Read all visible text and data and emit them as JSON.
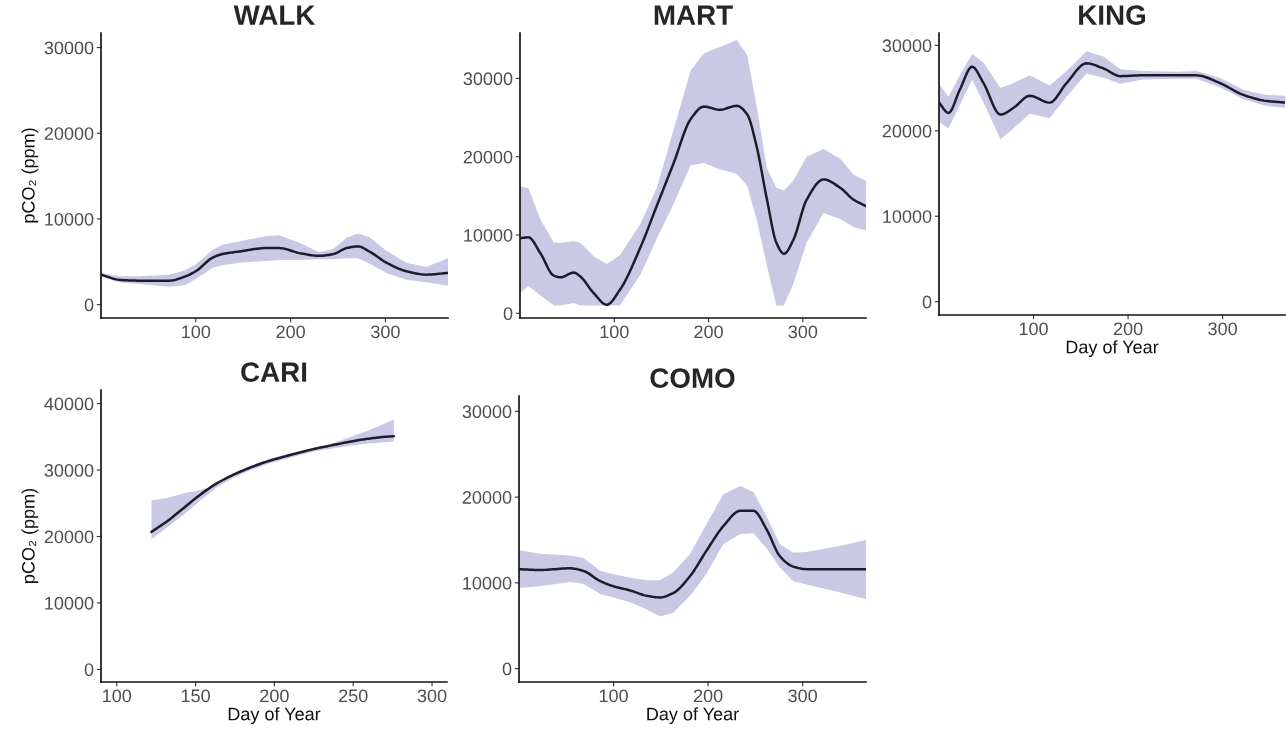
{
  "chart_data": [
    {
      "type": "line",
      "title": "WALK",
      "ylabel": "pCO₂ (ppm)",
      "xlim": [
        0,
        366
      ],
      "ylim": [
        -1560,
        31700
      ],
      "xticks": [
        100,
        200,
        300
      ],
      "yticks": [
        0,
        10000,
        20000,
        30000
      ],
      "series": [
        {
          "color": "#1c1c2c",
          "x": [
            0,
            19,
            40,
            72,
            89,
            100,
            118,
            128,
            146,
            174,
            188,
            210,
            230,
            245,
            259,
            271,
            283,
            301,
            322,
            343,
            366
          ],
          "values": [
            3500,
            2900,
            2800,
            2800,
            3300,
            3900,
            5500,
            5900,
            6200,
            6600,
            6600,
            6000,
            5700,
            5900,
            6600,
            6800,
            6200,
            4900,
            3900,
            3500,
            3700
          ],
          "upper": [
            3700,
            3300,
            3300,
            3500,
            4000,
            4700,
            6400,
            7000,
            7400,
            8000,
            8100,
            7200,
            6100,
            6500,
            7800,
            8300,
            7900,
            6300,
            4900,
            4400,
            5400
          ],
          "lower": [
            3300,
            2600,
            2400,
            2100,
            2300,
            3000,
            4300,
            4600,
            4900,
            5100,
            5200,
            5200,
            5300,
            5300,
            5400,
            5400,
            4800,
            3700,
            2900,
            2600,
            2200
          ]
        }
      ]
    },
    {
      "type": "line",
      "title": "MART",
      "xlim": [
        0,
        367
      ],
      "ylim": [
        -600,
        35800
      ],
      "xticks": [
        100,
        200,
        300
      ],
      "yticks": [
        0,
        10000,
        20000,
        30000
      ],
      "series": [
        {
          "color": "#1c1c2c",
          "x": [
            0,
            9,
            21.5,
            36,
            43,
            57,
            64,
            78,
            92,
            106,
            128,
            145,
            163,
            181,
            195,
            212,
            230,
            241,
            251,
            262,
            272,
            280,
            290,
            304,
            322,
            340,
            354,
            367
          ],
          "values": [
            9600,
            9700,
            7700,
            4800,
            4600,
            5200,
            4700,
            2600,
            1100,
            3000,
            8500,
            13700,
            19200,
            24800,
            26400,
            26000,
            26500,
            25400,
            21300,
            14500,
            9000,
            7600,
            9400,
            14500,
            17100,
            16000,
            14500,
            13700
          ],
          "upper": [
            16200,
            16000,
            12000,
            9000,
            9000,
            9200,
            9000,
            7300,
            6300,
            7400,
            11500,
            16000,
            23500,
            31000,
            33200,
            34000,
            34900,
            33000,
            26500,
            18500,
            16000,
            15700,
            17000,
            20000,
            21000,
            19700,
            17700,
            16900
          ],
          "lower": [
            2600,
            3500,
            2300,
            1000,
            1000,
            1300,
            1000,
            1000,
            1000,
            1000,
            5000,
            9500,
            14000,
            18900,
            19200,
            18400,
            17800,
            16300,
            12000,
            6000,
            1000,
            1000,
            3800,
            9000,
            12800,
            12000,
            11000,
            10600
          ]
        }
      ]
    },
    {
      "type": "line",
      "title": "KING",
      "xlabel": "Day of Year",
      "xlim": [
        0,
        366
      ],
      "ylim": [
        -1560,
        31450
      ],
      "xticks": [
        100,
        200,
        300
      ],
      "yticks": [
        0,
        10000,
        20000,
        30000
      ],
      "series": [
        {
          "color": "#1c1c2c",
          "x": [
            0,
            10,
            22,
            35,
            47,
            65,
            79,
            96,
            117,
            135,
            156,
            174,
            192,
            216,
            251,
            272,
            297,
            322,
            346,
            366
          ],
          "values": [
            23300,
            22100,
            24800,
            27500,
            25600,
            21900,
            22700,
            24100,
            23300,
            25600,
            27900,
            27300,
            26400,
            26500,
            26500,
            26500,
            25600,
            24200,
            23500,
            23300
          ],
          "upper": [
            25500,
            24000,
            26500,
            29000,
            28000,
            25000,
            25600,
            26500,
            25300,
            27000,
            29300,
            28700,
            27200,
            27000,
            26900,
            27000,
            26200,
            24800,
            24200,
            24100
          ],
          "lower": [
            21000,
            20300,
            23000,
            26000,
            23300,
            19000,
            20300,
            22000,
            21500,
            24000,
            26700,
            26200,
            25500,
            26000,
            26100,
            26100,
            25100,
            23700,
            22900,
            22700
          ]
        }
      ]
    },
    {
      "type": "line",
      "title": "CARI",
      "xlabel": "Day of Year",
      "ylabel": "pCO₂ (ppm)",
      "xlim": [
        90,
        309.5
      ],
      "ylim": [
        -1900,
        42050
      ],
      "xticks": [
        100,
        150,
        200,
        250,
        300
      ],
      "yticks": [
        0,
        10000,
        20000,
        30000,
        40000
      ],
      "series": [
        {
          "color": "#1c1c2c",
          "x": [
            122,
            132,
            142.5,
            153,
            163.5,
            174,
            185,
            195.6,
            206,
            217,
            227.5,
            238,
            248.7,
            259,
            270,
            275.8
          ],
          "values": [
            20700,
            22300,
            24300,
            26300,
            28000,
            29300,
            30400,
            31300,
            32000,
            32700,
            33300,
            33800,
            34300,
            34700,
            35000,
            35100
          ],
          "upper": [
            25400,
            25800,
            26500,
            27000,
            27800,
            29500,
            30700,
            31600,
            32300,
            32900,
            33400,
            34100,
            35000,
            35900,
            37000,
            37600
          ],
          "lower": [
            19600,
            21400,
            23300,
            25400,
            27400,
            28800,
            30000,
            30900,
            31600,
            32300,
            32900,
            33300,
            33700,
            34000,
            34200,
            34300
          ]
        }
      ]
    },
    {
      "type": "line",
      "title": "COMO",
      "xlabel": "Day of Year",
      "xlim": [
        0,
        367
      ],
      "ylim": [
        -1560,
        31790
      ],
      "xticks": [
        100,
        200,
        300
      ],
      "yticks": [
        0,
        10000,
        20000,
        30000
      ],
      "series": [
        {
          "color": "#1c1c2c",
          "x": [
            0,
            22,
            54,
            68,
            86,
            100,
            118,
            135,
            149,
            163,
            181,
            198,
            216,
            234,
            248,
            262,
            276,
            290,
            304,
            339,
            367
          ],
          "values": [
            11600,
            11500,
            11700,
            11400,
            10200,
            9600,
            9100,
            8500,
            8300,
            8800,
            10800,
            13700,
            16600,
            18400,
            18400,
            16200,
            13100,
            11900,
            11600,
            11600,
            11600
          ],
          "upper": [
            13800,
            13400,
            13200,
            12900,
            11400,
            11000,
            10600,
            10300,
            10300,
            11200,
            13400,
            16800,
            20300,
            21300,
            20600,
            17700,
            14500,
            13500,
            13600,
            14300,
            15000
          ],
          "lower": [
            9400,
            9600,
            10100,
            9900,
            8700,
            8300,
            7700,
            6900,
            6100,
            6500,
            8500,
            11000,
            14500,
            15700,
            15800,
            14000,
            11800,
            10200,
            9800,
            8900,
            8100
          ]
        }
      ]
    }
  ]
}
